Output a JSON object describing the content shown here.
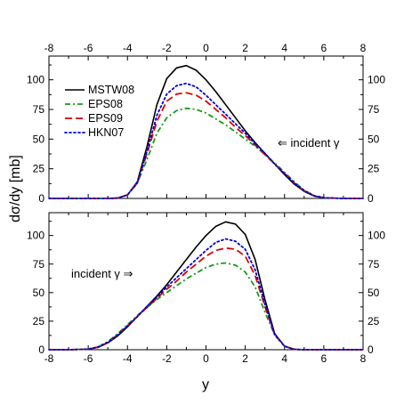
{
  "chart_data": [
    {
      "type": "line",
      "panel": "top",
      "xlim": [
        -8,
        8
      ],
      "ylim": [
        0,
        120
      ],
      "xticks": [
        -8,
        -6,
        -4,
        -2,
        0,
        2,
        4,
        6,
        8
      ],
      "yticks": [
        0,
        25,
        50,
        75,
        100
      ],
      "annotation": "⇐ incident γ",
      "series": [
        {
          "name": "MSTW08",
          "color": "#000000",
          "dash": "solid",
          "x": [
            -8,
            -5,
            -4.5,
            -4,
            -3.5,
            -3,
            -2.5,
            -2,
            -1.5,
            -1,
            -0.5,
            0,
            0.5,
            1,
            1.5,
            2,
            2.5,
            3,
            3.5,
            4,
            4.5,
            5,
            5.5,
            6,
            7,
            8
          ],
          "y": [
            0,
            0,
            0.3,
            3,
            14,
            44,
            79,
            101,
            110,
            112,
            108,
            100,
            90,
            79,
            68,
            57,
            47,
            38,
            29,
            20,
            12,
            6,
            2,
            0.5,
            0,
            0
          ]
        },
        {
          "name": "EPS08",
          "color": "#1a9a1a",
          "dash": "dashdot",
          "x": [
            -8,
            -5,
            -4.5,
            -4,
            -3.5,
            -3,
            -2.5,
            -2,
            -1.5,
            -1,
            -0.5,
            0,
            0.5,
            1,
            1.5,
            2,
            2.5,
            3,
            3.5,
            4,
            4.5,
            5,
            5.5,
            6,
            7,
            8
          ],
          "y": [
            0,
            0,
            0.3,
            3,
            13,
            33,
            55,
            68,
            74,
            76,
            75,
            72,
            67,
            62,
            56,
            50,
            44,
            37,
            30,
            22,
            14,
            7,
            2.5,
            0.6,
            0,
            0
          ]
        },
        {
          "name": "EPS09",
          "color": "#e00000",
          "dash": "dash",
          "x": [
            -8,
            -5,
            -4.5,
            -4,
            -3.5,
            -3,
            -2.5,
            -2,
            -1.5,
            -1,
            -0.5,
            0,
            0.5,
            1,
            1.5,
            2,
            2.5,
            3,
            3.5,
            4,
            4.5,
            5,
            5.5,
            6,
            7,
            8
          ],
          "y": [
            0,
            0,
            0.3,
            3,
            13,
            38,
            65,
            82,
            88,
            89,
            87,
            82,
            75,
            68,
            60,
            53,
            45,
            37,
            29,
            21,
            13,
            6.5,
            2.3,
            0.5,
            0,
            0
          ]
        },
        {
          "name": "HKN07",
          "color": "#0000dd",
          "dash": "dot",
          "x": [
            -8,
            -5,
            -4.5,
            -4,
            -3.5,
            -3,
            -2.5,
            -2,
            -1.5,
            -1,
            -0.5,
            0,
            0.5,
            1,
            1.5,
            2,
            2.5,
            3,
            3.5,
            4,
            4.5,
            5,
            5.5,
            6,
            7,
            8
          ],
          "y": [
            0,
            0,
            0.3,
            3,
            13,
            40,
            70,
            88,
            95,
            97,
            94,
            87,
            79,
            71,
            63,
            55,
            46,
            38,
            29,
            21,
            13,
            6.5,
            2.3,
            0.5,
            0,
            0
          ]
        }
      ]
    },
    {
      "type": "line",
      "panel": "bottom",
      "xlim": [
        -8,
        8
      ],
      "ylim": [
        0,
        120
      ],
      "xticks": [
        -8,
        -6,
        -4,
        -2,
        0,
        2,
        4,
        6,
        8
      ],
      "yticks": [
        0,
        25,
        50,
        75,
        100
      ],
      "xlabel": "y",
      "annotation": "incident γ ⇒",
      "series": [
        {
          "name": "MSTW08",
          "color": "#000000",
          "dash": "solid",
          "x": [
            -8,
            -7,
            -6,
            -5.5,
            -5,
            -4.5,
            -4,
            -3.5,
            -3,
            -2.5,
            -2,
            -1.5,
            -1,
            -0.5,
            0,
            0.5,
            1,
            1.5,
            2,
            2.5,
            3,
            3.5,
            4,
            4.5,
            5,
            8
          ],
          "y": [
            0,
            0,
            0.5,
            2,
            6,
            12,
            20,
            29,
            38,
            47,
            57,
            68,
            79,
            90,
            100,
            108,
            112,
            110,
            101,
            79,
            44,
            14,
            3,
            0.3,
            0,
            0
          ]
        },
        {
          "name": "EPS08",
          "color": "#1a9a1a",
          "dash": "dashdot",
          "x": [
            -8,
            -7,
            -6,
            -5.5,
            -5,
            -4.5,
            -4,
            -3.5,
            -3,
            -2.5,
            -2,
            -1.5,
            -1,
            -0.5,
            0,
            0.5,
            1,
            1.5,
            2,
            2.5,
            3,
            3.5,
            4,
            4.5,
            5,
            8
          ],
          "y": [
            0,
            0,
            0.6,
            2.5,
            7,
            14,
            22,
            30,
            37,
            44,
            50,
            56,
            62,
            67,
            72,
            75,
            76,
            74,
            68,
            55,
            33,
            13,
            3,
            0.3,
            0,
            0
          ]
        },
        {
          "name": "EPS09",
          "color": "#e00000",
          "dash": "dash",
          "x": [
            -8,
            -7,
            -6,
            -5.5,
            -5,
            -4.5,
            -4,
            -3.5,
            -3,
            -2.5,
            -2,
            -1.5,
            -1,
            -0.5,
            0,
            0.5,
            1,
            1.5,
            2,
            2.5,
            3,
            3.5,
            4,
            4.5,
            5,
            8
          ],
          "y": [
            0,
            0,
            0.5,
            2.3,
            6.5,
            13,
            21,
            29,
            37,
            45,
            53,
            60,
            68,
            75,
            82,
            87,
            89,
            88,
            82,
            65,
            38,
            13,
            3,
            0.3,
            0,
            0
          ]
        },
        {
          "name": "HKN07",
          "color": "#0000dd",
          "dash": "dot",
          "x": [
            -8,
            -7,
            -6,
            -5.5,
            -5,
            -4.5,
            -4,
            -3.5,
            -3,
            -2.5,
            -2,
            -1.5,
            -1,
            -0.5,
            0,
            0.5,
            1,
            1.5,
            2,
            2.5,
            3,
            3.5,
            4,
            4.5,
            5,
            8
          ],
          "y": [
            0,
            0,
            0.5,
            2.3,
            6.5,
            13,
            21,
            29,
            38,
            46,
            55,
            63,
            71,
            79,
            87,
            94,
            97,
            95,
            88,
            70,
            40,
            13,
            3,
            0.3,
            0,
            0
          ]
        }
      ]
    }
  ],
  "shared": {
    "ylabel": "dσ/dy [mb]",
    "xlabel": "y"
  }
}
